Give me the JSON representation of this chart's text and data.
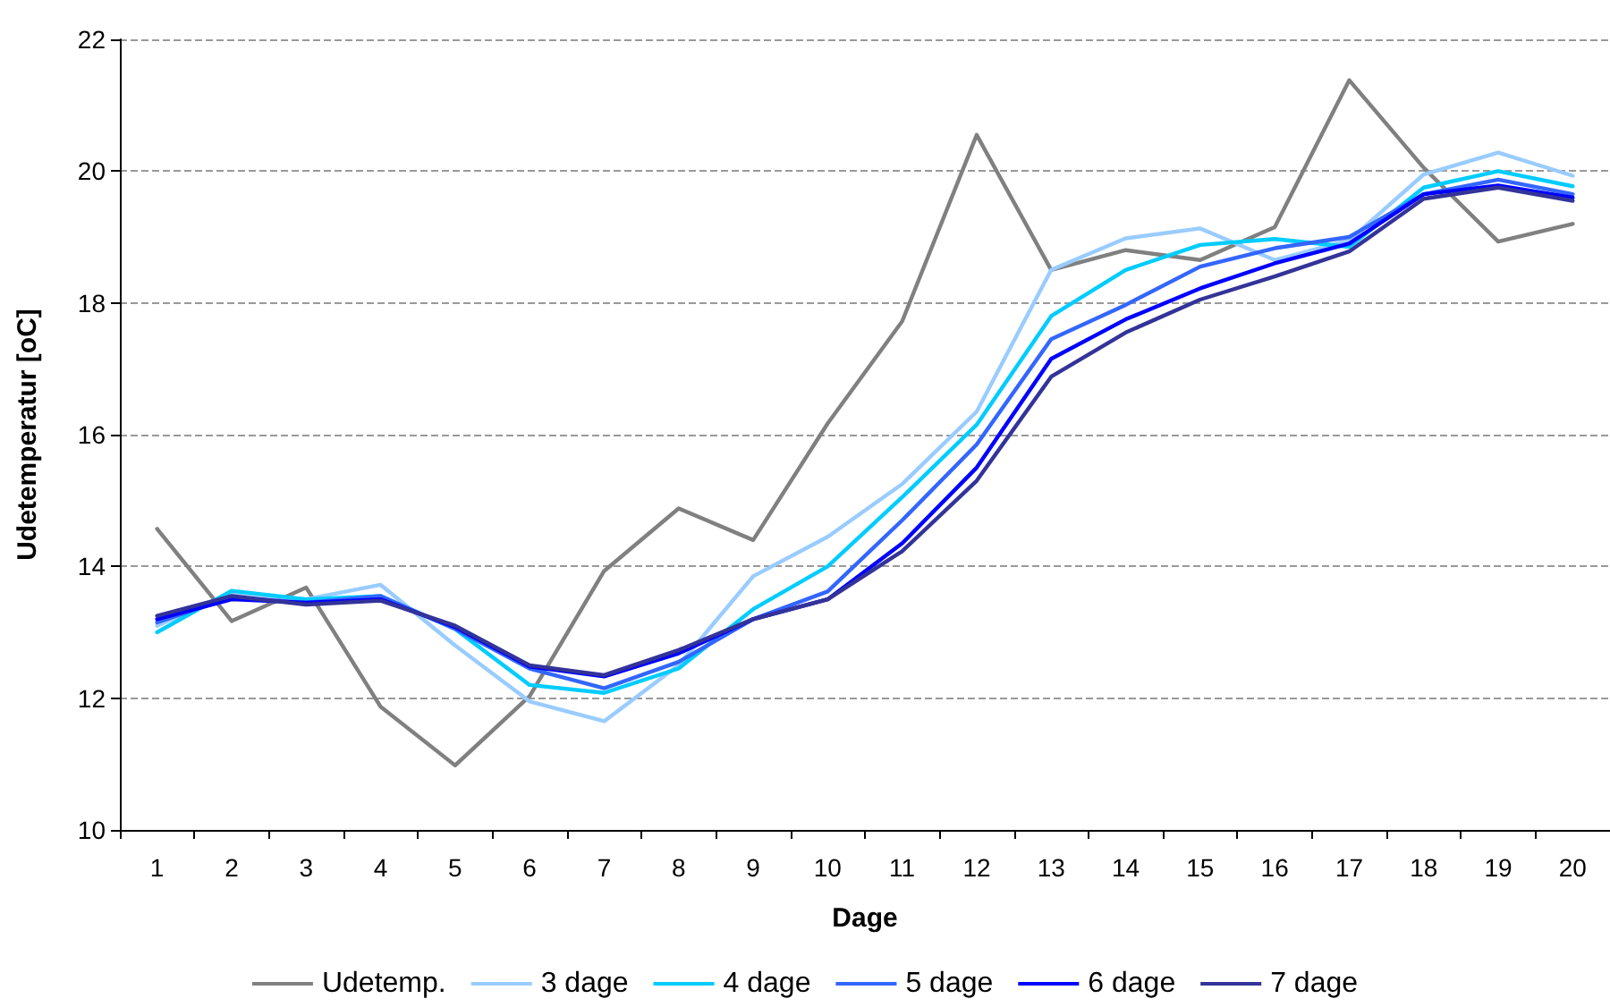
{
  "chart_data": {
    "type": "line",
    "xlabel": "Dage",
    "ylabel": "Udetemperatur [oC]",
    "categories": [
      "1",
      "2",
      "3",
      "4",
      "5",
      "6",
      "7",
      "8",
      "9",
      "10",
      "11",
      "12",
      "13",
      "14",
      "15",
      "16",
      "17",
      "18",
      "19",
      "20"
    ],
    "series": [
      {
        "name": "Udetemp.",
        "color": "#808080",
        "values": [
          14.57,
          13.17,
          13.68,
          11.87,
          10.98,
          12.03,
          13.93,
          14.88,
          14.4,
          16.17,
          17.72,
          20.55,
          18.5,
          18.8,
          18.65,
          19.15,
          21.38,
          20.05,
          18.93,
          19.2
        ]
      },
      {
        "name": "3 dage",
        "color": "#99ccff",
        "values": [
          13.1,
          13.6,
          13.5,
          13.72,
          12.8,
          11.95,
          11.65,
          12.5,
          13.85,
          14.45,
          15.25,
          16.35,
          18.5,
          18.98,
          19.13,
          18.65,
          18.95,
          19.95,
          20.28,
          19.93
        ]
      },
      {
        "name": "4 dage",
        "color": "#00ccff",
        "values": [
          13.0,
          13.63,
          13.5,
          13.55,
          13.05,
          12.2,
          12.08,
          12.45,
          13.35,
          14.0,
          15.05,
          16.15,
          17.8,
          18.5,
          18.88,
          18.97,
          18.85,
          19.75,
          20.0,
          19.77
        ]
      },
      {
        "name": "5 dage",
        "color": "#3366ff",
        "values": [
          13.15,
          13.53,
          13.45,
          13.55,
          13.05,
          12.45,
          12.15,
          12.55,
          13.2,
          13.62,
          14.7,
          15.85,
          17.45,
          17.97,
          18.55,
          18.83,
          19.0,
          19.65,
          19.87,
          19.65
        ]
      },
      {
        "name": "6 dage",
        "color": "#0000ff",
        "values": [
          13.2,
          13.5,
          13.45,
          13.5,
          13.08,
          12.48,
          12.33,
          12.68,
          13.2,
          13.5,
          14.35,
          15.5,
          17.15,
          17.75,
          18.22,
          18.6,
          18.9,
          19.65,
          19.78,
          19.6
        ]
      },
      {
        "name": "7 dage",
        "color": "#333399",
        "values": [
          13.25,
          13.55,
          13.42,
          13.48,
          13.1,
          12.5,
          12.35,
          12.73,
          13.2,
          13.5,
          14.23,
          15.3,
          16.88,
          17.55,
          18.05,
          18.4,
          18.78,
          19.58,
          19.75,
          19.55
        ]
      }
    ],
    "ylim": [
      10,
      22
    ],
    "yticks": [
      10,
      12,
      14,
      16,
      18,
      20,
      22
    ],
    "grid": "y",
    "legend": "bottom",
    "marker": "none",
    "line_style": "solid"
  }
}
